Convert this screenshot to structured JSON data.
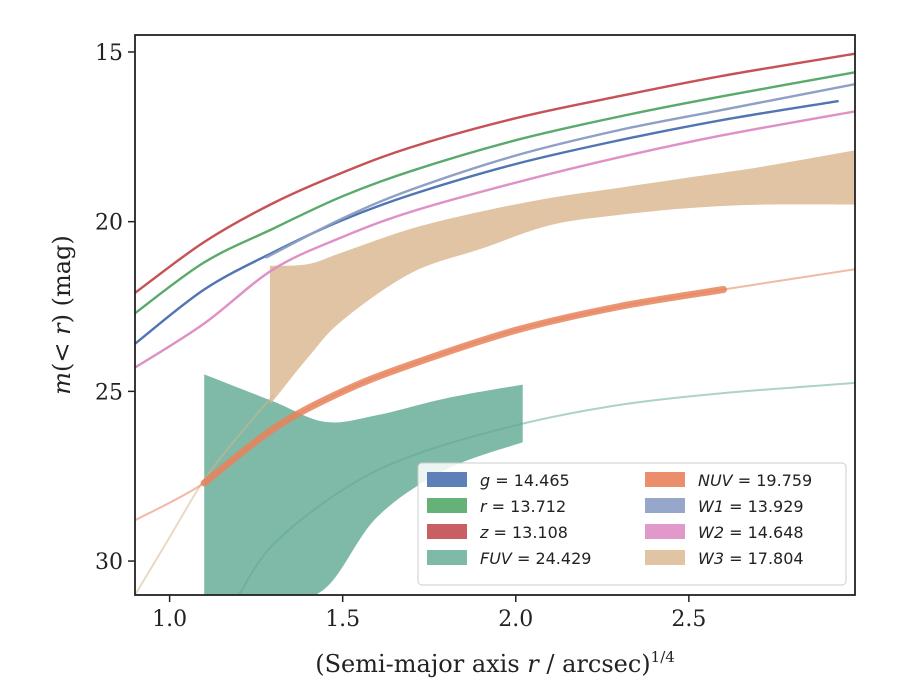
{
  "chart_data": {
    "type": "line",
    "xlabel": "(Semi-major axis r / arcsec)1/4",
    "xlabel_parts": {
      "pre": "(Semi-major axis ",
      "var": "r",
      "mid": " / arcsec)",
      "sup": "1/4"
    },
    "ylabel": "m(< r) (mag)",
    "ylabel_parts": {
      "pre": "m",
      "mid": "(< ",
      "var": "r",
      "post": ") (mag)"
    },
    "xlim": [
      0.9,
      2.98
    ],
    "ylim": [
      31.0,
      14.5
    ],
    "y_inverted": true,
    "xticks": [
      1.0,
      1.5,
      2.0,
      2.5
    ],
    "xtick_labels": [
      "1.0",
      "1.5",
      "2.0",
      "2.5"
    ],
    "yticks": [
      15,
      20,
      25,
      30
    ],
    "ytick_labels": [
      "15",
      "20",
      "25",
      "30"
    ],
    "grid": false,
    "legend_position": "lower-right",
    "series": [
      {
        "name": "g = 14.465",
        "label_var": "g",
        "label_value": "14.465",
        "color": "#4c72b0",
        "kind": "line",
        "x": [
          0.9,
          1.1,
          1.3,
          1.5,
          1.7,
          2.0,
          2.3,
          2.6,
          2.93
        ],
        "y": [
          23.6,
          22.0,
          20.9,
          19.95,
          19.2,
          18.3,
          17.6,
          17.0,
          16.45
        ]
      },
      {
        "name": "r = 13.712",
        "label_var": "r",
        "label_value": "13.712",
        "color": "#55a868",
        "kind": "line",
        "x": [
          0.9,
          1.1,
          1.3,
          1.5,
          1.7,
          2.0,
          2.3,
          2.6,
          2.98
        ],
        "y": [
          22.7,
          21.2,
          20.2,
          19.25,
          18.5,
          17.6,
          16.9,
          16.3,
          15.6
        ]
      },
      {
        "name": "z = 13.108",
        "label_var": "z",
        "label_value": "13.108",
        "color": "#c44e52",
        "kind": "line",
        "x": [
          0.9,
          1.1,
          1.3,
          1.5,
          1.7,
          2.0,
          2.3,
          2.6,
          2.98
        ],
        "y": [
          22.1,
          20.6,
          19.45,
          18.55,
          17.8,
          16.95,
          16.3,
          15.7,
          15.05
        ]
      },
      {
        "name": "FUV = 24.429",
        "label_var": "FUV",
        "label_value": "24.429",
        "color": "#5ba78f",
        "kind": "band",
        "x": [
          1.1,
          1.3,
          1.45,
          1.6,
          1.8,
          2.02
        ],
        "y": [
          31.2,
          31.2,
          30.8,
          28.7,
          27.3,
          26.5
        ],
        "y_upper": [
          24.5,
          25.3,
          25.9,
          25.7,
          25.2,
          24.8
        ],
        "curve_x": [
          1.2,
          1.3,
          1.5,
          1.7,
          2.0,
          2.3,
          2.6,
          2.98
        ],
        "curve_y": [
          31.0,
          29.5,
          27.9,
          26.9,
          26.0,
          25.4,
          25.05,
          24.75
        ]
      },
      {
        "name": "NUV = 19.759",
        "label_var": "NUV",
        "label_value": "19.759",
        "color": "#e8825c",
        "kind": "line",
        "x": [
          0.9,
          1.1,
          1.3,
          1.5,
          1.7,
          2.0,
          2.3,
          2.6,
          2.98
        ],
        "y": [
          28.8,
          27.7,
          26.1,
          25.0,
          24.2,
          23.2,
          22.5,
          22.0,
          21.4
        ]
      },
      {
        "name": "W1 = 13.929",
        "label_var": "W1",
        "label_value": "13.929",
        "color": "#8c9dc3",
        "kind": "line",
        "x": [
          1.28,
          1.5,
          1.7,
          2.0,
          2.3,
          2.6,
          2.98
        ],
        "y": [
          21.05,
          19.9,
          19.05,
          18.05,
          17.3,
          16.7,
          15.95
        ]
      },
      {
        "name": "W2 = 14.648",
        "label_var": "W2",
        "label_value": "14.648",
        "color": "#dd8ec4",
        "kind": "line",
        "x": [
          0.9,
          1.1,
          1.3,
          1.5,
          1.7,
          2.0,
          2.3,
          2.6,
          2.98
        ],
        "y": [
          24.3,
          23.0,
          21.4,
          20.45,
          19.7,
          18.85,
          18.1,
          17.45,
          16.75
        ]
      },
      {
        "name": "W3 = 17.804",
        "label_var": "W3",
        "label_value": "17.804",
        "color": "#d7b48a",
        "kind": "band",
        "x": [
          1.29,
          1.4,
          1.5,
          1.7,
          1.9,
          2.1,
          2.3,
          2.5,
          2.7,
          2.98
        ],
        "y": [
          25.4,
          24.0,
          22.9,
          21.5,
          20.8,
          20.1,
          19.8,
          19.6,
          19.5,
          19.5
        ],
        "y_upper": [
          21.3,
          21.25,
          20.9,
          20.2,
          19.7,
          19.3,
          19.0,
          18.7,
          18.4,
          17.9
        ],
        "curve_x": [
          0.9,
          1.0,
          1.1,
          1.2,
          1.3
        ],
        "curve_y": [
          31.0,
          29.3,
          27.6,
          26.3,
          25.1
        ]
      }
    ]
  }
}
